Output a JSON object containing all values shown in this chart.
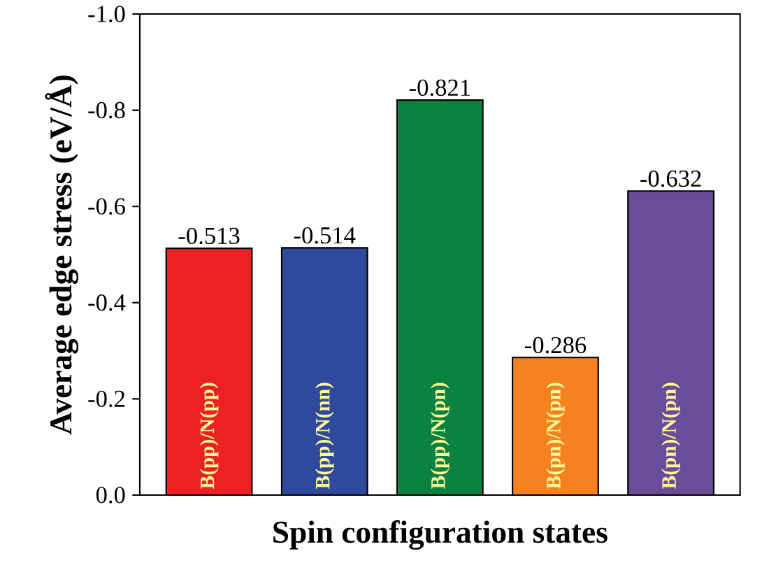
{
  "chart_data": {
    "type": "bar",
    "xlabel": "Spin configuration states",
    "ylabel": "Average edge stress (eV/Å)",
    "categories": [
      "B(pp)/N(pp)",
      "B(pp)/N(nn)",
      "B(pp)/N(pn)",
      "B(pn)/N(pn)",
      "B(pn)/N(pn)"
    ],
    "values": [
      -0.513,
      -0.514,
      -0.821,
      -0.286,
      -0.632
    ],
    "colors": [
      "#ed2024",
      "#2f4a9c",
      "#0c8242",
      "#f6821f",
      "#6b4c9a"
    ],
    "ylim": [
      0,
      -1.0
    ],
    "yticks": [
      {
        "value": 0,
        "label": "0.0"
      },
      -0.2,
      -0.4,
      -0.6,
      -0.8,
      {
        "value": -1.0,
        "label": "-1.0"
      }
    ],
    "data_labels": true,
    "grid": false
  }
}
